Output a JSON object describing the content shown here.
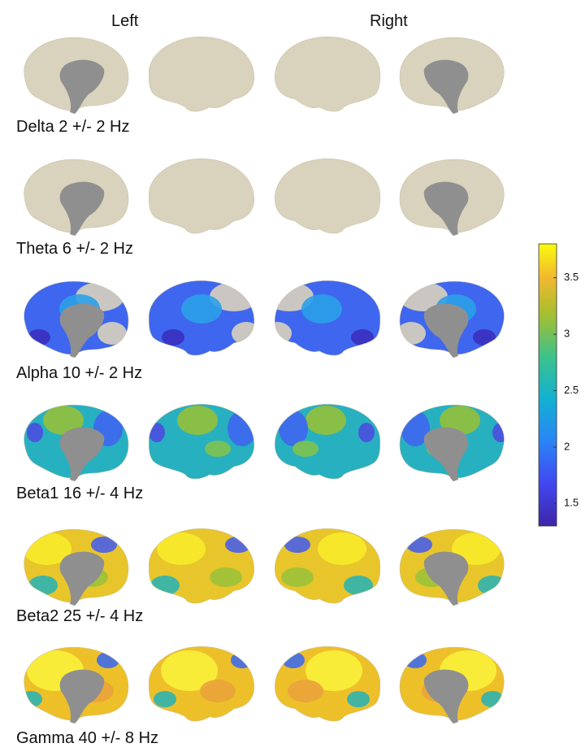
{
  "header": {
    "left": "Left",
    "right": "Right"
  },
  "rows": [
    {
      "label": "Delta 2 +/- 2 Hz"
    },
    {
      "label": "Theta 6 +/- 2 Hz"
    },
    {
      "label": "Alpha 10 +/- 2 Hz"
    },
    {
      "label": "Beta1 16 +/- 4 Hz"
    },
    {
      "label": "Beta2 25 +/- 4 Hz"
    },
    {
      "label": "Gamma 40 +/- 8 Hz"
    }
  ],
  "colorbar": {
    "lim": [
      1.3,
      3.8
    ],
    "ticks": [
      1.5,
      2,
      2.5,
      3,
      3.5
    ]
  }
}
